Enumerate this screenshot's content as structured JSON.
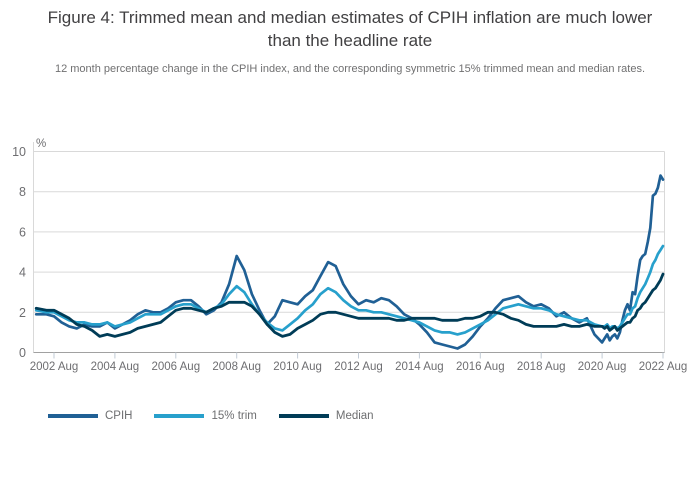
{
  "figure": {
    "title": "Figure 4: Trimmed mean and median estimates of CPIH inflation are much lower than the headline rate",
    "subtitle": "12 month percentage change in the CPIH index, and the corresponding symmetric 15% trimmed mean and median rates."
  },
  "chart_data": {
    "type": "line",
    "title": "Figure 4: Trimmed mean and median estimates of CPIH inflation are much lower than the headline rate",
    "ylabel": "%",
    "xlabel": "",
    "grid": "horizontal",
    "legend_position": "bottom",
    "y_axis": {
      "ticks": [
        0,
        2,
        4,
        6,
        8,
        10
      ],
      "range": [
        0,
        10
      ],
      "unit": "%"
    },
    "x_axis": {
      "tick_labels": [
        "2002 Aug",
        "2004 Aug",
        "2006 Aug",
        "2008 Aug",
        "2010 Aug",
        "2012 Aug",
        "2014 Aug",
        "2016 Aug",
        "2018 Aug",
        "2020 Aug",
        "2022 Aug"
      ],
      "tick_months": [
        7,
        31,
        55,
        79,
        103,
        127,
        151,
        175,
        199,
        223,
        247
      ],
      "month0_label": "2002 Jan"
    },
    "x_months": [
      0,
      4,
      7,
      10,
      13,
      16,
      19,
      22,
      25,
      28,
      31,
      34,
      37,
      40,
      43,
      46,
      49,
      52,
      55,
      58,
      61,
      64,
      67,
      70,
      73,
      76,
      79,
      82,
      85,
      88,
      91,
      94,
      97,
      100,
      103,
      106,
      109,
      112,
      115,
      118,
      121,
      124,
      127,
      130,
      133,
      136,
      139,
      142,
      145,
      148,
      151,
      154,
      157,
      160,
      163,
      166,
      169,
      172,
      175,
      178,
      181,
      184,
      187,
      190,
      193,
      196,
      199,
      202,
      205,
      208,
      211,
      214,
      217,
      220,
      223,
      224,
      225,
      226,
      227,
      228,
      229,
      230,
      231,
      232,
      233,
      234,
      235,
      236,
      237,
      238,
      239,
      240,
      241,
      242,
      243,
      244,
      245,
      246,
      247
    ],
    "series": [
      {
        "name": "CPIH",
        "color": "#206095",
        "stroke_width": 2.7,
        "values": [
          1.9,
          1.9,
          1.8,
          1.5,
          1.3,
          1.2,
          1.4,
          1.3,
          1.3,
          1.5,
          1.2,
          1.4,
          1.6,
          1.9,
          2.1,
          2.0,
          2.0,
          2.2,
          2.5,
          2.6,
          2.6,
          2.3,
          1.9,
          2.1,
          2.5,
          3.4,
          4.8,
          4.1,
          2.9,
          2.1,
          1.4,
          1.8,
          2.6,
          2.5,
          2.4,
          2.8,
          3.1,
          3.8,
          4.5,
          4.3,
          3.4,
          2.8,
          2.4,
          2.6,
          2.5,
          2.7,
          2.6,
          2.3,
          1.9,
          1.7,
          1.4,
          1.0,
          0.5,
          0.4,
          0.3,
          0.2,
          0.4,
          0.8,
          1.3,
          1.7,
          2.2,
          2.6,
          2.7,
          2.8,
          2.5,
          2.3,
          2.4,
          2.2,
          1.8,
          2.0,
          1.7,
          1.5,
          1.7,
          0.9,
          0.5,
          0.7,
          0.9,
          0.6,
          0.8,
          0.9,
          0.7,
          1.0,
          1.6,
          2.1,
          2.4,
          2.1,
          3.0,
          2.9,
          3.8,
          4.6,
          4.8,
          4.9,
          5.5,
          6.2,
          7.8,
          7.9,
          8.2,
          8.8,
          8.6
        ]
      },
      {
        "name": "15% trim",
        "color": "#27a0cc",
        "stroke_width": 2.7,
        "values": [
          2.1,
          2.0,
          2.0,
          1.8,
          1.6,
          1.5,
          1.5,
          1.4,
          1.4,
          1.5,
          1.3,
          1.4,
          1.5,
          1.7,
          1.9,
          1.9,
          1.9,
          2.1,
          2.3,
          2.4,
          2.4,
          2.2,
          2.0,
          2.2,
          2.4,
          2.9,
          3.3,
          3.0,
          2.4,
          1.9,
          1.5,
          1.2,
          1.1,
          1.4,
          1.7,
          2.1,
          2.4,
          2.9,
          3.2,
          3.0,
          2.6,
          2.3,
          2.1,
          2.1,
          2.0,
          2.0,
          1.9,
          1.8,
          1.7,
          1.6,
          1.5,
          1.3,
          1.1,
          1.0,
          1.0,
          0.9,
          1.0,
          1.2,
          1.4,
          1.6,
          1.9,
          2.2,
          2.3,
          2.4,
          2.3,
          2.2,
          2.2,
          2.1,
          1.9,
          1.8,
          1.7,
          1.6,
          1.6,
          1.4,
          1.3,
          1.3,
          1.4,
          1.2,
          1.3,
          1.3,
          1.2,
          1.3,
          1.5,
          1.7,
          1.9,
          1.9,
          2.2,
          2.3,
          2.7,
          3.0,
          3.2,
          3.4,
          3.7,
          4.0,
          4.4,
          4.6,
          4.9,
          5.1,
          5.3
        ]
      },
      {
        "name": "Median",
        "color": "#003c57",
        "stroke_width": 2.8,
        "values": [
          2.2,
          2.1,
          2.1,
          1.9,
          1.7,
          1.4,
          1.3,
          1.1,
          0.8,
          0.9,
          0.8,
          0.9,
          1.0,
          1.2,
          1.3,
          1.4,
          1.5,
          1.8,
          2.1,
          2.2,
          2.2,
          2.1,
          2.0,
          2.2,
          2.3,
          2.5,
          2.5,
          2.5,
          2.3,
          1.9,
          1.4,
          1.0,
          0.8,
          0.9,
          1.2,
          1.4,
          1.6,
          1.9,
          2.0,
          2.0,
          1.9,
          1.8,
          1.7,
          1.7,
          1.7,
          1.7,
          1.7,
          1.6,
          1.6,
          1.7,
          1.7,
          1.7,
          1.7,
          1.6,
          1.6,
          1.6,
          1.7,
          1.7,
          1.8,
          2.0,
          2.0,
          1.9,
          1.7,
          1.6,
          1.4,
          1.3,
          1.3,
          1.3,
          1.3,
          1.4,
          1.3,
          1.3,
          1.4,
          1.3,
          1.3,
          1.2,
          1.3,
          1.1,
          1.2,
          1.3,
          1.1,
          1.2,
          1.3,
          1.4,
          1.5,
          1.5,
          1.7,
          1.8,
          2.1,
          2.2,
          2.4,
          2.5,
          2.7,
          2.9,
          3.1,
          3.2,
          3.4,
          3.6,
          3.9
        ]
      }
    ],
    "style_colors": {
      "grid": "#d9d9d9",
      "axis_line": "#a1a1a1",
      "tick_mark": "#c2cbd6",
      "axis_text": "#6e6e71",
      "title_text": "#414042",
      "subtitle_text": "#707071"
    }
  }
}
